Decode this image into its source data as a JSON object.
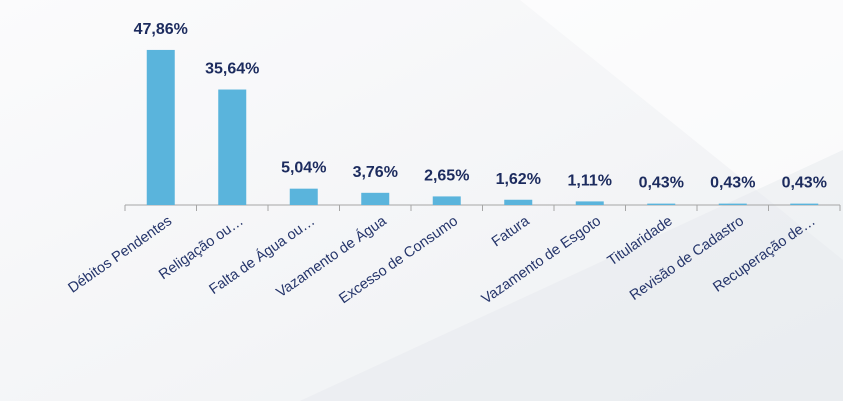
{
  "chart_data": {
    "type": "bar",
    "categories": [
      "Débitos Pendentes",
      "Religação ou…",
      "Falta de Água ou…",
      "Vazamento de Água",
      "Excesso de Consumo",
      "Fatura",
      "Vazamento de Esgoto",
      "Titularidade",
      "Revisão de Cadastro",
      "Recuperação de…"
    ],
    "values": [
      47.86,
      35.64,
      5.04,
      3.76,
      2.65,
      1.62,
      1.11,
      0.43,
      0.43,
      0.43
    ],
    "value_labels": [
      "47,86%",
      "35,64%",
      "5,04%",
      "3,76%",
      "2,65%",
      "1,62%",
      "1,11%",
      "0,43%",
      "0,43%",
      "0,43%"
    ],
    "color": "#5ab4dc"
  }
}
